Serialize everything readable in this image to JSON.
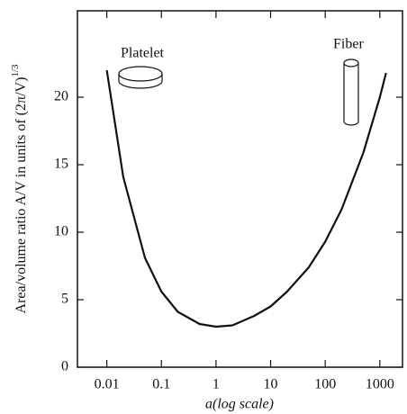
{
  "chart_data": {
    "type": "line",
    "xlabel": "a(log scale)",
    "ylabel": "Area/volume ratio A/V in units of (2π/V)",
    "ylabel_exponent": "1/3",
    "annotations": [
      "Platelet",
      "Fiber"
    ],
    "x": [
      0.01,
      0.02,
      0.05,
      0.1,
      0.2,
      0.5,
      1,
      2,
      5,
      10,
      20,
      50,
      100,
      200,
      500,
      1000,
      1300
    ],
    "series": [
      {
        "color": "#111111",
        "values": [
          22.0,
          14.1,
          8.1,
          5.6,
          4.1,
          3.2,
          3.0,
          3.1,
          3.8,
          4.5,
          5.6,
          7.4,
          9.3,
          11.7,
          15.9,
          20.0,
          21.8
        ]
      }
    ],
    "xscale": "log",
    "xlim": [
      0.0029,
      2600
    ],
    "xticks": [
      0.01,
      0.1,
      1,
      10,
      100,
      1000
    ],
    "ylim": [
      0,
      26.4
    ],
    "yticks": [
      0,
      5,
      10,
      15,
      20
    ]
  }
}
